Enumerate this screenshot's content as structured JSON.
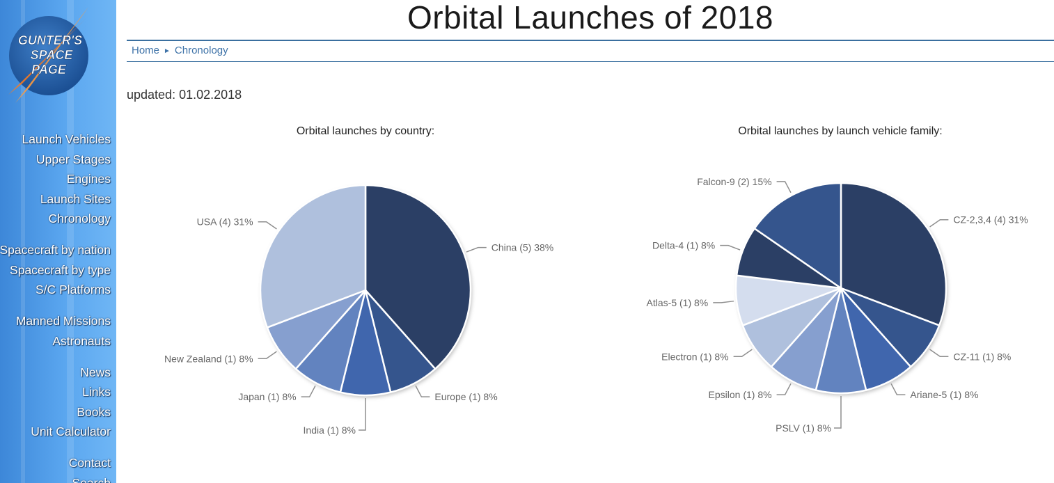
{
  "logo": {
    "line1": "GUNTER'S",
    "line2": "SPACE",
    "line3": "PAGE"
  },
  "sidebar": {
    "groups": [
      [
        "Launch Vehicles",
        "Upper Stages",
        "Engines",
        "Launch Sites",
        "Chronology"
      ],
      [
        "Spacecraft by nation",
        "Spacecraft by type",
        "S/C Platforms"
      ],
      [
        "Manned Missions",
        "Astronauts"
      ],
      [
        "News",
        "Links",
        "Books",
        "Unit Calculator"
      ],
      [
        "Contact",
        "Search"
      ]
    ]
  },
  "header": {
    "title": "Orbital Launches of 2018"
  },
  "breadcrumb": {
    "home": "Home",
    "separator": "►",
    "current": "Chronology"
  },
  "updated": "updated: 01.02.2018",
  "chart_data": [
    {
      "type": "pie",
      "title": "Orbital launches by country:",
      "slices": [
        {
          "label": "China (5) 38%",
          "value": 5,
          "color": "#2b3f65"
        },
        {
          "label": "Europe (1) 8%",
          "value": 1,
          "color": "#35558d"
        },
        {
          "label": "India (1) 8%",
          "value": 1,
          "color": "#4066ad"
        },
        {
          "label": "Japan (1) 8%",
          "value": 1,
          "color": "#6283bf"
        },
        {
          "label": "New Zealand (1) 8%",
          "value": 1,
          "color": "#869fcf"
        },
        {
          "label": "USA (4) 31%",
          "value": 4,
          "color": "#afc0dd"
        }
      ]
    },
    {
      "type": "pie",
      "title": "Orbital launches by launch vehicle family:",
      "slices": [
        {
          "label": "CZ-2,3,4 (4) 31%",
          "value": 4,
          "color": "#2b3f65"
        },
        {
          "label": "CZ-11 (1) 8%",
          "value": 1,
          "color": "#35558d"
        },
        {
          "label": "Ariane-5 (1) 8%",
          "value": 1,
          "color": "#4066ad"
        },
        {
          "label": "PSLV (1) 8%",
          "value": 1,
          "color": "#6283bf"
        },
        {
          "label": "Epsilon (1) 8%",
          "value": 1,
          "color": "#869fcf"
        },
        {
          "label": "Electron (1) 8%",
          "value": 1,
          "color": "#afc0dd"
        },
        {
          "label": "Atlas-5 (1) 8%",
          "value": 1,
          "color": "#d4ddee"
        },
        {
          "label": "Delta-4 (1) 8%",
          "value": 1,
          "color": "#2b3f65"
        },
        {
          "label": "Falcon-9 (2) 15%",
          "value": 2,
          "color": "#35558d"
        }
      ]
    }
  ]
}
